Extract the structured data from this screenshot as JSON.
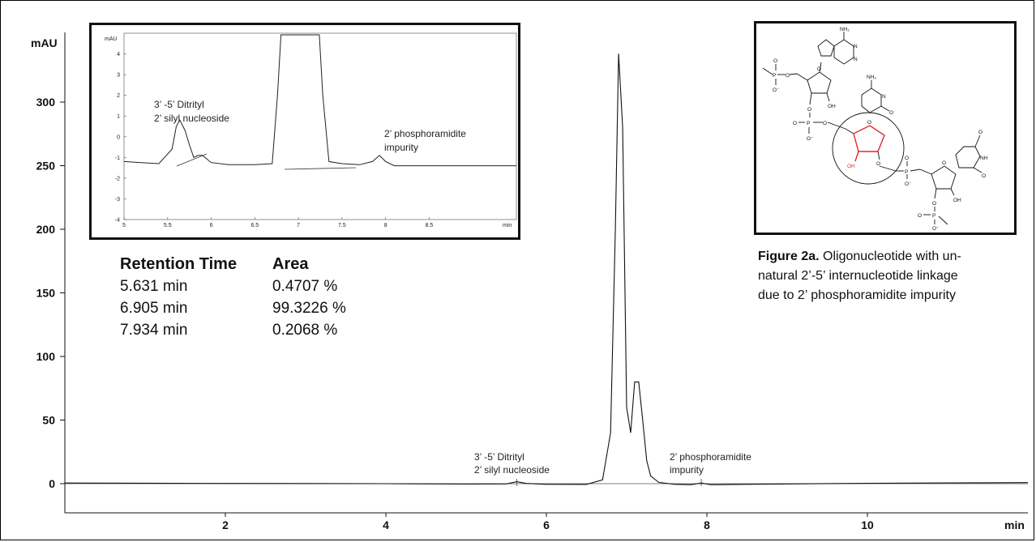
{
  "chart_data": [
    {
      "type": "line",
      "xlabel": "min",
      "ylabel": "mAU",
      "xlim": [
        0,
        12
      ],
      "ylim": [
        -30,
        360
      ],
      "xticks": [
        2,
        4,
        6,
        8,
        10
      ],
      "yticks": [
        0,
        50,
        100,
        150,
        200,
        250,
        300
      ],
      "series": [
        {
          "x": [
            0,
            1,
            2,
            3,
            4,
            5,
            5.5,
            5.63,
            5.75,
            6.0,
            6.5,
            6.7,
            6.8,
            6.86,
            6.9,
            6.95,
            7.0,
            7.05,
            7.1,
            7.15,
            7.2,
            7.25,
            7.3,
            7.4,
            7.6,
            7.8,
            7.93,
            8.05,
            8.5,
            10,
            12
          ],
          "y": [
            0.5,
            0.4,
            0.2,
            0.1,
            0.0,
            -0.3,
            -0.2,
            1.5,
            0.2,
            -0.5,
            -0.6,
            3,
            40,
            200,
            338,
            280,
            60,
            40,
            80,
            80,
            50,
            18,
            6,
            1,
            -0.5,
            -0.8,
            0.5,
            -0.8,
            -0.5,
            0.3,
            0.8
          ]
        }
      ],
      "annotations": [
        {
          "text": "3’ -5’ Ditrityl\n2’ silyl nucleoside",
          "x": 5.63
        },
        {
          "text": "2’ phosphoramidite\nimpurity",
          "x": 7.93
        }
      ]
    },
    {
      "type": "line",
      "xlabel": "min",
      "ylabel": "mAU",
      "xlim": [
        5,
        9.5
      ],
      "ylim": [
        -4,
        5
      ],
      "xticks": [
        5,
        5.5,
        6,
        6.5,
        7,
        7.5,
        8,
        8.5
      ],
      "yticks": [
        -4,
        -3,
        -2,
        -1,
        0,
        1,
        2,
        3,
        4
      ],
      "series": [
        {
          "x": [
            5.0,
            5.2,
            5.4,
            5.55,
            5.6,
            5.64,
            5.7,
            5.75,
            5.8,
            5.85,
            5.9,
            6.0,
            6.2,
            6.5,
            6.7,
            6.76,
            6.8,
            7.24,
            7.28,
            7.35,
            7.5,
            7.7,
            7.85,
            7.93,
            8.0,
            8.1,
            8.5,
            9.0,
            9.5
          ],
          "y": [
            -1.2,
            -1.25,
            -1.3,
            -0.6,
            0.5,
            0.8,
            0.3,
            -0.4,
            -1.0,
            -0.9,
            -0.9,
            -1.25,
            -1.35,
            -1.35,
            -1.3,
            2,
            6,
            6,
            2,
            -1.2,
            -1.3,
            -1.35,
            -1.2,
            -0.9,
            -1.2,
            -1.4,
            -1.4,
            -1.4,
            -1.4
          ]
        }
      ],
      "annotations": [
        {
          "text": "3’ -5’ Ditrityl\n2’ silyl nucleoside",
          "x": 5.63
        },
        {
          "text": "2’ phosphoramidite\nimpurity",
          "x": 7.93
        }
      ]
    },
    {
      "type": "table",
      "columns": [
        "Retention Time",
        "Area"
      ],
      "rows": [
        [
          "5.631 min",
          "0.4707 %"
        ],
        [
          "6.905 min",
          "99.3226 %"
        ],
        [
          "7.934 min",
          "0.2068 %"
        ]
      ]
    }
  ],
  "main_chart": {
    "ylabel": "mAU",
    "xlabel": "min",
    "xticks": [
      "2",
      "4",
      "6",
      "8",
      "10"
    ],
    "yticks": [
      "0",
      "50",
      "100",
      "150",
      "200",
      "250",
      "300"
    ],
    "ann1_line1": "3’ -5’ Ditrityl",
    "ann1_line2": "2’ silyl nucleoside",
    "ann2_line1": "2’ phosphoramidite",
    "ann2_line2": "impurity"
  },
  "inset_chart": {
    "ylabel": "mAU",
    "xlabel": "min",
    "xticks": [
      "5",
      "5.5",
      "6",
      "6.5",
      "7",
      "7.5",
      "8",
      "8.5"
    ],
    "yticks": [
      "-4",
      "-3",
      "-2",
      "-1",
      "0",
      "1",
      "2",
      "3",
      "4"
    ],
    "ann1_line1": "3’ -5’ Ditrityl",
    "ann1_line2": "2’ silyl nucleoside",
    "ann2_line1": "2’ phosphoramidite",
    "ann2_line2": "impurity"
  },
  "table": {
    "header_rt": "Retention Time",
    "header_area": "Area",
    "rows": [
      {
        "rt": "5.631 min",
        "area": "0.4707 %"
      },
      {
        "rt": "6.905 min",
        "area": "99.3226 %"
      },
      {
        "rt": "7.934 min",
        "area": "0.2068 %"
      }
    ]
  },
  "figure": {
    "label": "Figure 2a.",
    "caption_line1": "Oligonucleotide with un-",
    "caption_line2": "natural 2’-5’ internucleotide linkage",
    "caption_line3": "due to 2’ phosphoramidite impurity"
  },
  "molecule": {
    "nh2": "NH₂",
    "oh": "OH",
    "o": "O",
    "p": "P",
    "o_minus": "O⁻",
    "n": "N",
    "nh": "NH",
    "highlight_color": "#e8262a"
  }
}
